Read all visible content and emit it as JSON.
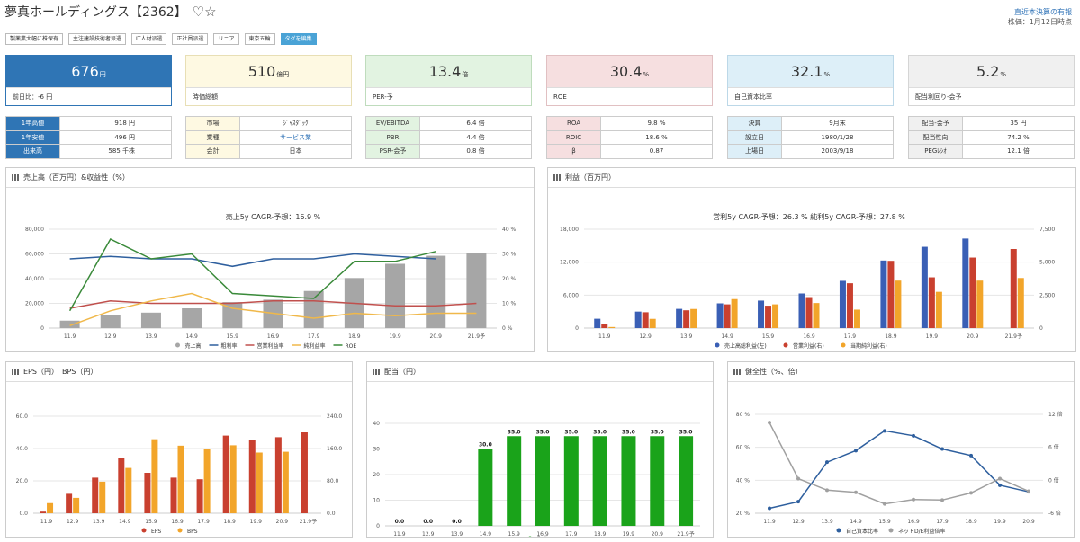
{
  "header": {
    "title": "夢真ホールディングス【2362】",
    "favorite_symbol": "♡☆",
    "link": "直近本決算の有報",
    "stock_date": "株価：1月12日時点"
  },
  "tags": [
    "製薬業大幅に株保有",
    "主注建設技術者派遣",
    "IT人材派遣",
    "正社員派遣",
    "リニア",
    "東京五輪",
    "タグを編集"
  ],
  "cards": [
    {
      "value": "676",
      "unit": "円",
      "label": "前日比：-6 円",
      "bg": "#2f75b5",
      "fg": "#ffffff",
      "border": "#2f75b5"
    },
    {
      "value": "510",
      "unit": "億円",
      "label": "時価総額",
      "bg": "#fef9e2",
      "fg": "#333333",
      "border": "#e8dfb5"
    },
    {
      "value": "13.4",
      "unit": "倍",
      "label": "PER-予",
      "bg": "#e2f3e1",
      "fg": "#333333",
      "border": "#bfdcbd"
    },
    {
      "value": "30.4",
      "unit": "%",
      "label": "ROE",
      "bg": "#f6dfe0",
      "fg": "#333333",
      "border": "#e1c0c2"
    },
    {
      "value": "32.1",
      "unit": "%",
      "label": "自己資本比率",
      "bg": "#ddeff8",
      "fg": "#333333",
      "border": "#bcd8e8"
    },
    {
      "value": "5.2",
      "unit": "%",
      "label": "配当利回り-会予",
      "bg": "#f0f0f0",
      "fg": "#333333",
      "border": "#d5d5d5"
    }
  ],
  "tables": [
    {
      "bg": "#2f75b5",
      "fg": "#ffffff",
      "rows": [
        [
          "1年高値",
          "918 円"
        ],
        [
          "1年安値",
          "496 円"
        ],
        [
          "出来高",
          "585 千株"
        ]
      ]
    },
    {
      "bg": "#fef9e2",
      "fg": "#333333",
      "rows": [
        [
          "市場",
          "ｼﾞｬｽﾀﾞｯｸ"
        ],
        [
          "業種",
          "サービス業"
        ],
        [
          "会計",
          "日本"
        ]
      ]
    },
    {
      "bg": "#e2f3e1",
      "fg": "#333333",
      "rows": [
        [
          "EV/EBITDA",
          "6.4 倍"
        ],
        [
          "PBR",
          "4.4 倍"
        ],
        [
          "PSR-会予",
          "0.8 倍"
        ]
      ]
    },
    {
      "bg": "#f6dfe0",
      "fg": "#333333",
      "rows": [
        [
          "ROA",
          "9.8 %"
        ],
        [
          "ROIC",
          "18.6 %"
        ],
        [
          "β",
          "0.87"
        ]
      ]
    },
    {
      "bg": "#ddeff8",
      "fg": "#333333",
      "rows": [
        [
          "決算",
          "9月末"
        ],
        [
          "設立日",
          "1980/1/28"
        ],
        [
          "上場日",
          "2003/9/18"
        ]
      ]
    },
    {
      "bg": "#f0f0f0",
      "fg": "#333333",
      "rows": [
        [
          "配当-会予",
          "35 円"
        ],
        [
          "配当性向",
          "74.2 %"
        ],
        [
          "PEGﾚｼｵ",
          "12.1 倍"
        ]
      ]
    }
  ],
  "chart_data": [
    {
      "id": "sales",
      "type": "bar",
      "title": "売上高（百万円）&収益性（%）",
      "subtitle": "売上5y CAGR-予想：16.9 %",
      "categories": [
        "11.9",
        "12.9",
        "13.9",
        "14.9",
        "15.9",
        "16.9",
        "17.9",
        "18.9",
        "19.9",
        "20.9",
        "21.9予"
      ],
      "ylim": [
        0,
        80000
      ],
      "yticks": [
        "0",
        "20,000",
        "40,000",
        "60,000",
        "80,000"
      ],
      "y2lim": [
        0,
        40
      ],
      "y2ticks": [
        "0 %",
        "10 %",
        "20 %",
        "30 %",
        "40 %"
      ],
      "series": [
        {
          "name": "売上高",
          "kind": "bar",
          "axis": "left",
          "color": "#a6a6a6",
          "values": [
            6000,
            10500,
            12500,
            16000,
            21000,
            23000,
            30000,
            40500,
            52000,
            58500,
            61000
          ]
        },
        {
          "name": "粗利率",
          "kind": "line",
          "axis": "right",
          "color": "#2e5f9e",
          "values": [
            28,
            29,
            28,
            28,
            25,
            28,
            28,
            30,
            29,
            28,
            null
          ]
        },
        {
          "name": "営業利益率",
          "kind": "line",
          "axis": "right",
          "color": "#c0504d",
          "values": [
            8,
            11,
            10,
            10,
            10,
            11,
            11,
            10,
            9,
            9,
            10
          ]
        },
        {
          "name": "純利益率",
          "kind": "line",
          "axis": "right",
          "color": "#f0b84a",
          "values": [
            1,
            7,
            11,
            14,
            8,
            6,
            4,
            6,
            5,
            6,
            6
          ]
        },
        {
          "name": "ROE",
          "kind": "line",
          "axis": "right",
          "color": "#3a8a3a",
          "values": [
            7,
            36,
            28,
            30,
            14,
            13,
            12,
            27,
            27,
            31,
            null
          ]
        }
      ]
    },
    {
      "id": "profit",
      "type": "bar",
      "title": "利益（百万円）",
      "subtitle": "営利5y CAGR-予想：26.3 %  純利5y CAGR-予想：27.8 %",
      "categories": [
        "11.9",
        "12.9",
        "13.9",
        "14.9",
        "15.9",
        "16.9",
        "17.9",
        "18.9",
        "19.9",
        "20.9",
        "21.9予"
      ],
      "ylim": [
        0,
        18000
      ],
      "yticks": [
        "0",
        "6,000",
        "12,000",
        "18,000"
      ],
      "y2lim": [
        0,
        7500
      ],
      "y2ticks": [
        "0",
        "2,500",
        "5,000",
        "7,500"
      ],
      "series": [
        {
          "name": "売上高総利益(左)",
          "kind": "bar",
          "axis": "left",
          "color": "#3a5fb5",
          "values": [
            1700,
            3000,
            3500,
            4500,
            5000,
            6300,
            8600,
            12300,
            14800,
            16300,
            null
          ]
        },
        {
          "name": "営業利益(右)",
          "kind": "bar",
          "axis": "right",
          "color": "#c9402f",
          "values": [
            300,
            1200,
            1350,
            1800,
            1700,
            2350,
            3400,
            5100,
            3850,
            5350,
            6000
          ]
        },
        {
          "name": "当期純利益(右)",
          "kind": "bar",
          "axis": "right",
          "color": "#f2a52a",
          "values": [
            80,
            700,
            1450,
            2200,
            1800,
            1900,
            1400,
            3600,
            2750,
            3600,
            3800
          ]
        }
      ]
    },
    {
      "id": "eps",
      "type": "bar",
      "title": "EPS（円）　BPS（円）",
      "categories": [
        "11.9",
        "12.9",
        "13.9",
        "14.9",
        "15.9",
        "16.9",
        "17.9",
        "18.9",
        "19.9",
        "20.9",
        "21.9予"
      ],
      "ylim": [
        0,
        60
      ],
      "yticks": [
        "0.0",
        "20.0",
        "40.0",
        "60.0"
      ],
      "y2lim": [
        0,
        240
      ],
      "y2ticks": [
        "0.0",
        "80.0",
        "160.0",
        "240.0"
      ],
      "series": [
        {
          "name": "EPS",
          "kind": "bar",
          "axis": "left",
          "color": "#c9402f",
          "values": [
            1,
            12,
            22,
            34,
            25,
            22,
            21,
            48,
            45,
            47,
            50
          ]
        },
        {
          "name": "BPS",
          "kind": "bar",
          "axis": "right",
          "color": "#f2a52a",
          "values": [
            25,
            38,
            78,
            112,
            183,
            167,
            158,
            168,
            150,
            152,
            null
          ]
        }
      ]
    },
    {
      "id": "dividend",
      "type": "bar",
      "title": "配当（円）",
      "categories": [
        "11.9",
        "12.9",
        "13.9",
        "14.9",
        "15.9",
        "16.9",
        "17.9",
        "18.9",
        "19.9",
        "20.9",
        "21.9予"
      ],
      "ylim": [
        0,
        40
      ],
      "yticks": [
        "0",
        "10",
        "20",
        "30",
        "40"
      ],
      "series": [
        {
          "name": "配当",
          "kind": "bar",
          "axis": "left",
          "color": "#1aa31a",
          "values": [
            0.0,
            0.0,
            0.0,
            30.0,
            35.0,
            35.0,
            35.0,
            35.0,
            35.0,
            35.0,
            35.0
          ],
          "labels": [
            "0.0",
            "0.0",
            "0.0",
            "30.0",
            "35.0",
            "35.0",
            "35.0",
            "35.0",
            "35.0",
            "35.0",
            "35.0"
          ]
        }
      ]
    },
    {
      "id": "health",
      "type": "line",
      "title": "健全性（%、倍）",
      "categories": [
        "11.9",
        "12.9",
        "13.9",
        "14.9",
        "15.9",
        "16.9",
        "17.9",
        "18.9",
        "19.9",
        "20.9"
      ],
      "ylim": [
        20,
        80
      ],
      "yticks": [
        "20 %",
        "40 %",
        "60 %",
        "80 %"
      ],
      "y2lim": [
        -6,
        12
      ],
      "y2ticks": [
        "-6 倍",
        "0 倍",
        "6 倍",
        "12 倍"
      ],
      "series": [
        {
          "name": "自己資本比率",
          "kind": "line",
          "axis": "left",
          "color": "#2e5f9e",
          "values": [
            23,
            27,
            51,
            58,
            70,
            67,
            59,
            55,
            37,
            33
          ]
        },
        {
          "name": "ネットD/E利益倍率",
          "kind": "line",
          "axis": "right",
          "color": "#a0a0a0",
          "values": [
            10.5,
            0.3,
            -1.8,
            -2.2,
            -4.3,
            -3.5,
            -3.6,
            -2.3,
            0.3,
            -2.0
          ]
        }
      ]
    }
  ]
}
